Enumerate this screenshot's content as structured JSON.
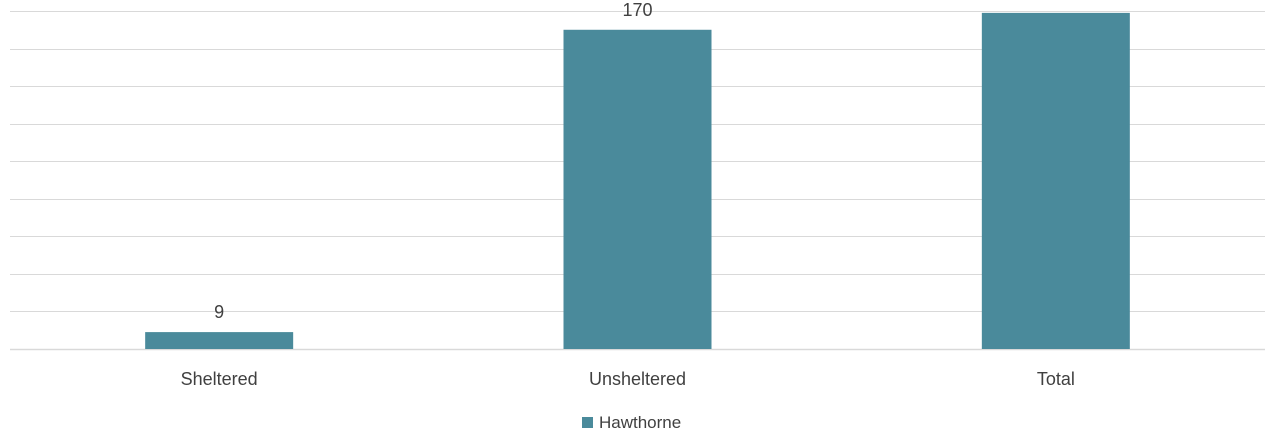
{
  "chart_data": {
    "type": "bar",
    "categories": [
      "Sheltered",
      "Unsheltered",
      "Total"
    ],
    "series": [
      {
        "name": "Hawthorne",
        "values": [
          9,
          170,
          179
        ],
        "color": "#4a8a9b"
      }
    ],
    "ylim": [
      0,
      180
    ],
    "y_gridline_step": 20,
    "grid": true,
    "data_labels": true,
    "legend": "bottom-center",
    "title": "",
    "xlabel": "",
    "ylabel": ""
  }
}
